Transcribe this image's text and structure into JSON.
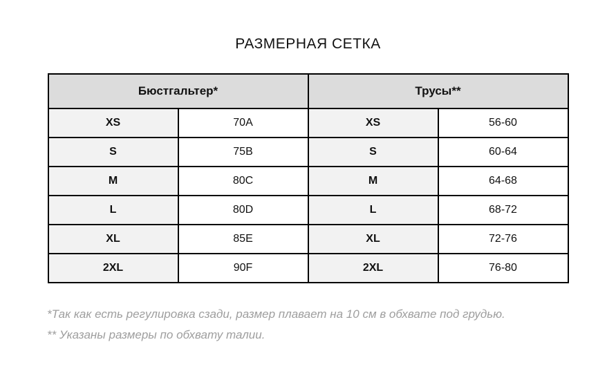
{
  "title": "РАЗМЕРНАЯ СЕТКА",
  "table": {
    "headers": [
      "Бюстгальтер*",
      "Трусы**"
    ],
    "rows": [
      [
        "XS",
        "70A",
        "XS",
        "56-60"
      ],
      [
        "S",
        "75B",
        "S",
        "60-64"
      ],
      [
        "M",
        "80C",
        "M",
        "64-68"
      ],
      [
        "L",
        "80D",
        "L",
        "68-72"
      ],
      [
        "XL",
        "85E",
        "XL",
        "72-76"
      ],
      [
        "2XL",
        "90F",
        "2XL",
        "76-80"
      ]
    ]
  },
  "footnotes": [
    "*Так как есть регулировка сзади, размер плавает на 10 см в обхвате под грудью.",
    "** Указаны размеры по обхвату талии."
  ],
  "colors": {
    "page_bg": "#ffffff",
    "header_bg": "#dcdcdc",
    "size_cell_bg": "#f2f2f2",
    "border": "#000000",
    "text": "#111111",
    "footnote": "#9e9e9e"
  }
}
